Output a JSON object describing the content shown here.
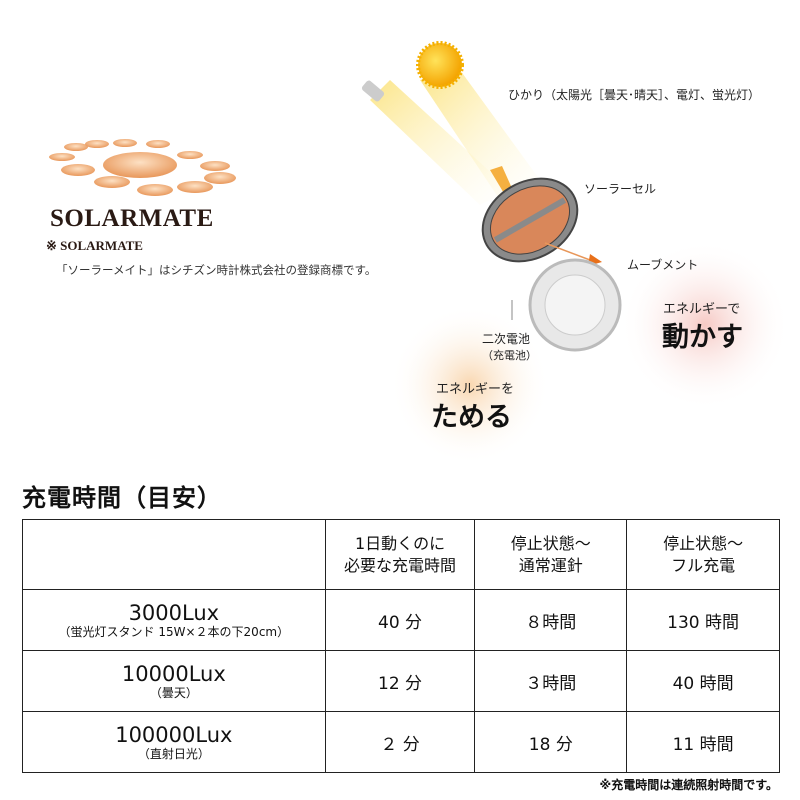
{
  "logo": {
    "name": "SOLARMATE",
    "mark": "※ SOLARMATE",
    "note": "「ソーラーメイト」はシチズン時計株式会社の登録商標です。"
  },
  "diagram": {
    "light_label": "ひかり（太陽光［曇天･晴天］、電灯、蛍光灯）",
    "solar_cell_label": "ソーラーセル",
    "movement_label": "ムーブメント",
    "battery_label": "二次電池",
    "battery_sub": "（充電池）",
    "store_small": "エネルギーを",
    "store_big": "ためる",
    "move_small": "エネルギーで",
    "move_big": "動かす"
  },
  "section_title": "充電時間（目安）",
  "table": {
    "headers": [
      "",
      "1日動くのに\n必要な充電時間",
      "停止状態～\n通常運針",
      "停止状態～\nフル充電"
    ],
    "rows": [
      {
        "lux": "3000Lux",
        "note": "（蛍光灯スタンド 15W×２本の下20cm）",
        "values": [
          "40 分",
          "８時間",
          "130 時間"
        ]
      },
      {
        "lux": "10000Lux",
        "note": "（曇天）",
        "values": [
          "12 分",
          "３時間",
          "40 時間"
        ]
      },
      {
        "lux": "100000Lux",
        "note": "（直射日光）",
        "values": [
          "２ 分",
          "18 分",
          "11 時間"
        ]
      }
    ]
  },
  "footnote": "※充電時間は連続照射時間です。",
  "colors": {
    "orange": "#e8975a",
    "sun": "#f7b500",
    "cell": "#d9875a"
  }
}
